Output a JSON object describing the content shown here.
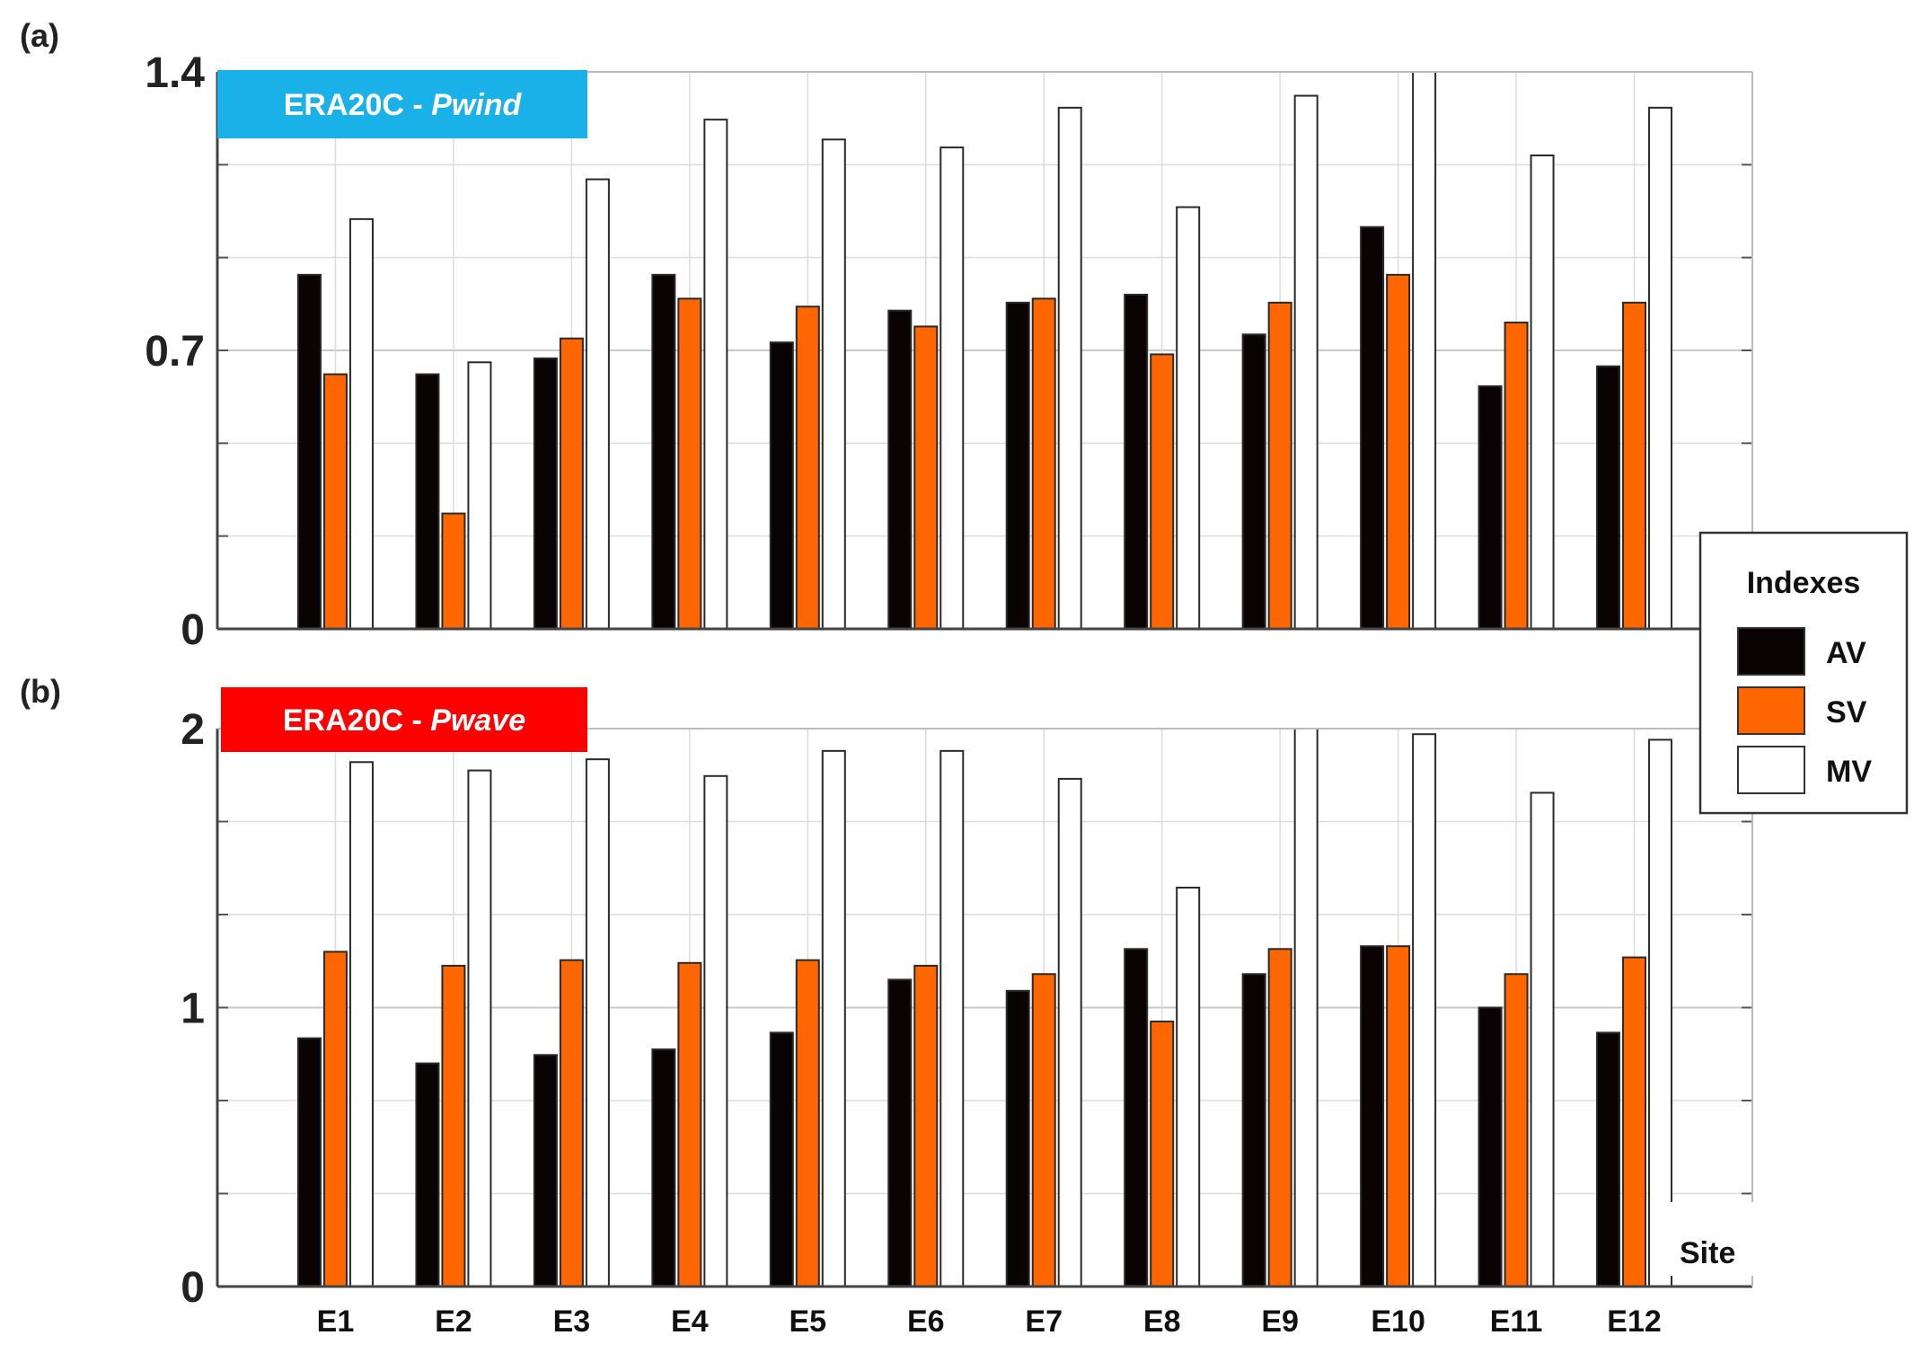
{
  "chart_data": [
    {
      "type": "bar",
      "panel_label": "(a)",
      "title_prefix": "ERA20C - ",
      "title_italic": "Pwind",
      "title_color": "#1ab0e8",
      "xlabel": "",
      "ylabel": "",
      "categories": [
        "E1",
        "E2",
        "E3",
        "E4",
        "E5",
        "E6",
        "E7",
        "E8",
        "E9",
        "E10",
        "E11",
        "E12"
      ],
      "yticks": [
        "0",
        "0.7",
        "1.4"
      ],
      "ylim": [
        0,
        1.4
      ],
      "grid": true,
      "series": [
        {
          "name": "AV",
          "color": "#0a0303",
          "values": [
            0.89,
            0.64,
            0.68,
            0.89,
            0.72,
            0.8,
            0.82,
            0.84,
            0.74,
            1.01,
            0.61,
            0.66
          ]
        },
        {
          "name": "SV",
          "color": "#ff6600",
          "values": [
            0.64,
            0.29,
            0.73,
            0.83,
            0.81,
            0.76,
            0.83,
            0.69,
            0.82,
            0.89,
            0.77,
            0.82
          ]
        },
        {
          "name": "MV",
          "color": "#ffffff",
          "values": [
            1.03,
            0.67,
            1.13,
            1.28,
            1.23,
            1.21,
            1.31,
            1.06,
            1.34,
            1.4,
            1.19,
            1.31
          ]
        }
      ]
    },
    {
      "type": "bar",
      "panel_label": "(b)",
      "title_prefix": "ERA20C - ",
      "title_italic": "Pwave",
      "title_color": "#ff0000",
      "xlabel": "Site",
      "ylabel": "",
      "categories": [
        "E1",
        "E2",
        "E3",
        "E4",
        "E5",
        "E6",
        "E7",
        "E8",
        "E9",
        "E10",
        "E11",
        "E12"
      ],
      "yticks": [
        "0",
        "1",
        "2"
      ],
      "ylim": [
        0,
        2
      ],
      "grid": true,
      "series": [
        {
          "name": "AV",
          "color": "#0a0303",
          "values": [
            0.89,
            0.8,
            0.83,
            0.85,
            0.91,
            1.1,
            1.06,
            1.21,
            1.12,
            1.22,
            1.0,
            0.91
          ]
        },
        {
          "name": "SV",
          "color": "#ff6600",
          "values": [
            1.2,
            1.15,
            1.17,
            1.16,
            1.17,
            1.15,
            1.12,
            0.95,
            1.21,
            1.22,
            1.12,
            1.18
          ]
        },
        {
          "name": "MV",
          "color": "#ffffff",
          "values": [
            1.88,
            1.85,
            1.89,
            1.83,
            1.92,
            1.92,
            1.82,
            1.43,
            2.0,
            1.98,
            1.77,
            1.96
          ]
        }
      ]
    }
  ],
  "legend": {
    "title": "Indexes",
    "items": [
      {
        "label": "AV",
        "color": "#0a0303"
      },
      {
        "label": "SV",
        "color": "#ff6600"
      },
      {
        "label": "MV",
        "color": "#ffffff"
      }
    ]
  }
}
